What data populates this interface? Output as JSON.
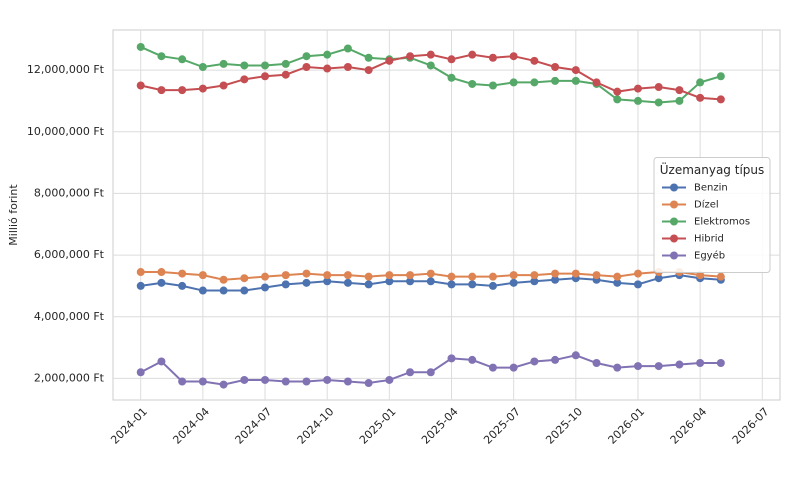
{
  "chart_data": {
    "type": "line",
    "y_label": "Millió forint",
    "legend_title": "Üzemanyag típus",
    "legend": "center right",
    "grid": true,
    "x": [
      "2024-01",
      "2024-02",
      "2024-03",
      "2024-04",
      "2024-05",
      "2024-06",
      "2024-07",
      "2024-08",
      "2024-09",
      "2024-10",
      "2024-11",
      "2024-12",
      "2025-01",
      "2025-02",
      "2025-03",
      "2025-04",
      "2025-05",
      "2025-06",
      "2025-07",
      "2025-08",
      "2025-09",
      "2025-10",
      "2025-11",
      "2025-12",
      "2026-01",
      "2026-02",
      "2026-03",
      "2026-04",
      "2026-05"
    ],
    "xlim": [
      "2023-12",
      "2026-08"
    ],
    "xticks": [
      "2024-01",
      "2024-04",
      "2024-07",
      "2024-10",
      "2025-01",
      "2025-04",
      "2025-07",
      "2025-10",
      "2026-01",
      "2026-04",
      "2026-07"
    ],
    "ylim": [
      1300000,
      13300000
    ],
    "yticks": [
      {
        "value": 2000000,
        "label": "2,000,000 Ft"
      },
      {
        "value": 4000000,
        "label": "4,000,000 Ft"
      },
      {
        "value": 6000000,
        "label": "6,000,000 Ft"
      },
      {
        "value": 8000000,
        "label": "8,000,000 Ft"
      },
      {
        "value": 10000000,
        "label": "10,000,000 Ft"
      },
      {
        "value": 12000000,
        "label": "12,000,000 Ft"
      }
    ],
    "series": [
      {
        "name": "Benzin",
        "color": "#4c72b0",
        "values": [
          5000000,
          5100000,
          5000000,
          4850000,
          4850000,
          4850000,
          4950000,
          5050000,
          5100000,
          5150000,
          5100000,
          5050000,
          5150000,
          5150000,
          5150000,
          5050000,
          5050000,
          5000000,
          5100000,
          5150000,
          5200000,
          5250000,
          5200000,
          5100000,
          5050000,
          5250000,
          5350000,
          5250000,
          5200000
        ]
      },
      {
        "name": "Dízel",
        "color": "#dd8452",
        "values": [
          5450000,
          5450000,
          5400000,
          5350000,
          5200000,
          5250000,
          5300000,
          5350000,
          5400000,
          5350000,
          5350000,
          5300000,
          5350000,
          5350000,
          5400000,
          5300000,
          5300000,
          5300000,
          5350000,
          5350000,
          5400000,
          5400000,
          5350000,
          5300000,
          5400000,
          5450000,
          5450000,
          5350000,
          5300000
        ]
      },
      {
        "name": "Elektromos",
        "color": "#55a868",
        "values": [
          12750000,
          12450000,
          12350000,
          12100000,
          12200000,
          12150000,
          12150000,
          12200000,
          12450000,
          12500000,
          12700000,
          12400000,
          12350000,
          12400000,
          12150000,
          11750000,
          11550000,
          11500000,
          11600000,
          11600000,
          11650000,
          11650000,
          11550000,
          11050000,
          11000000,
          10950000,
          11000000,
          11600000,
          11800000
        ]
      },
      {
        "name": "Hibrid",
        "color": "#c44e52",
        "values": [
          11500000,
          11350000,
          11350000,
          11400000,
          11500000,
          11700000,
          11800000,
          11850000,
          12100000,
          12050000,
          12100000,
          12000000,
          12300000,
          12450000,
          12500000,
          12350000,
          12500000,
          12400000,
          12450000,
          12300000,
          12100000,
          12000000,
          11600000,
          11300000,
          11400000,
          11450000,
          11350000,
          11100000,
          11050000
        ]
      },
      {
        "name": "Egyéb",
        "color": "#8172b3",
        "values": [
          2200000,
          2550000,
          1900000,
          1900000,
          1800000,
          1950000,
          1950000,
          1900000,
          1900000,
          1950000,
          1900000,
          1850000,
          1950000,
          2200000,
          2200000,
          2650000,
          2600000,
          2350000,
          2350000,
          2550000,
          2600000,
          2750000,
          2500000,
          2350000,
          2400000,
          2400000,
          2450000,
          2500000,
          2500000
        ]
      }
    ]
  }
}
